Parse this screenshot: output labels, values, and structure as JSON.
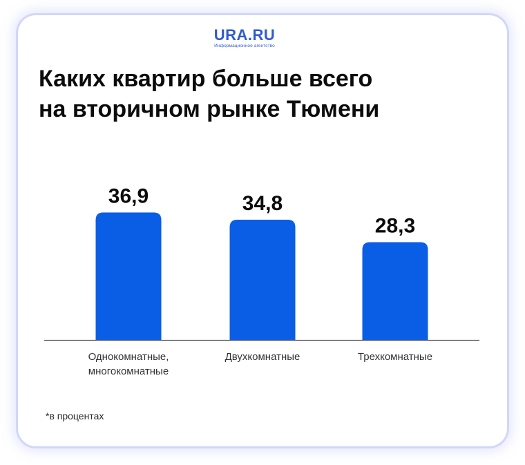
{
  "logo": {
    "name": "URA.RU",
    "tagline": "Информационное агентство"
  },
  "title_lines": [
    "Каких квартир больше всего",
    "на вторичном рынке Тюмени"
  ],
  "footnote": "*в процентах",
  "colors": {
    "bar": "#0a5ee6",
    "accent": "#2f5bd3",
    "axis": "#555555",
    "value_label": "#0c0c0c",
    "category_label": "#333333"
  },
  "chart_data": {
    "type": "bar",
    "title": "Каких квартир больше всего на вторичном рынке Тюмени",
    "categories": [
      [
        "Однокомнатные,",
        "многокомнатные"
      ],
      [
        "Двухкомнатные"
      ],
      [
        "Трехкомнатные"
      ]
    ],
    "values": [
      36.9,
      34.8,
      28.3
    ],
    "value_labels": [
      "36,9",
      "34,8",
      "28,3"
    ],
    "ylim": [
      0,
      40
    ],
    "grid": false,
    "legend": "none"
  }
}
